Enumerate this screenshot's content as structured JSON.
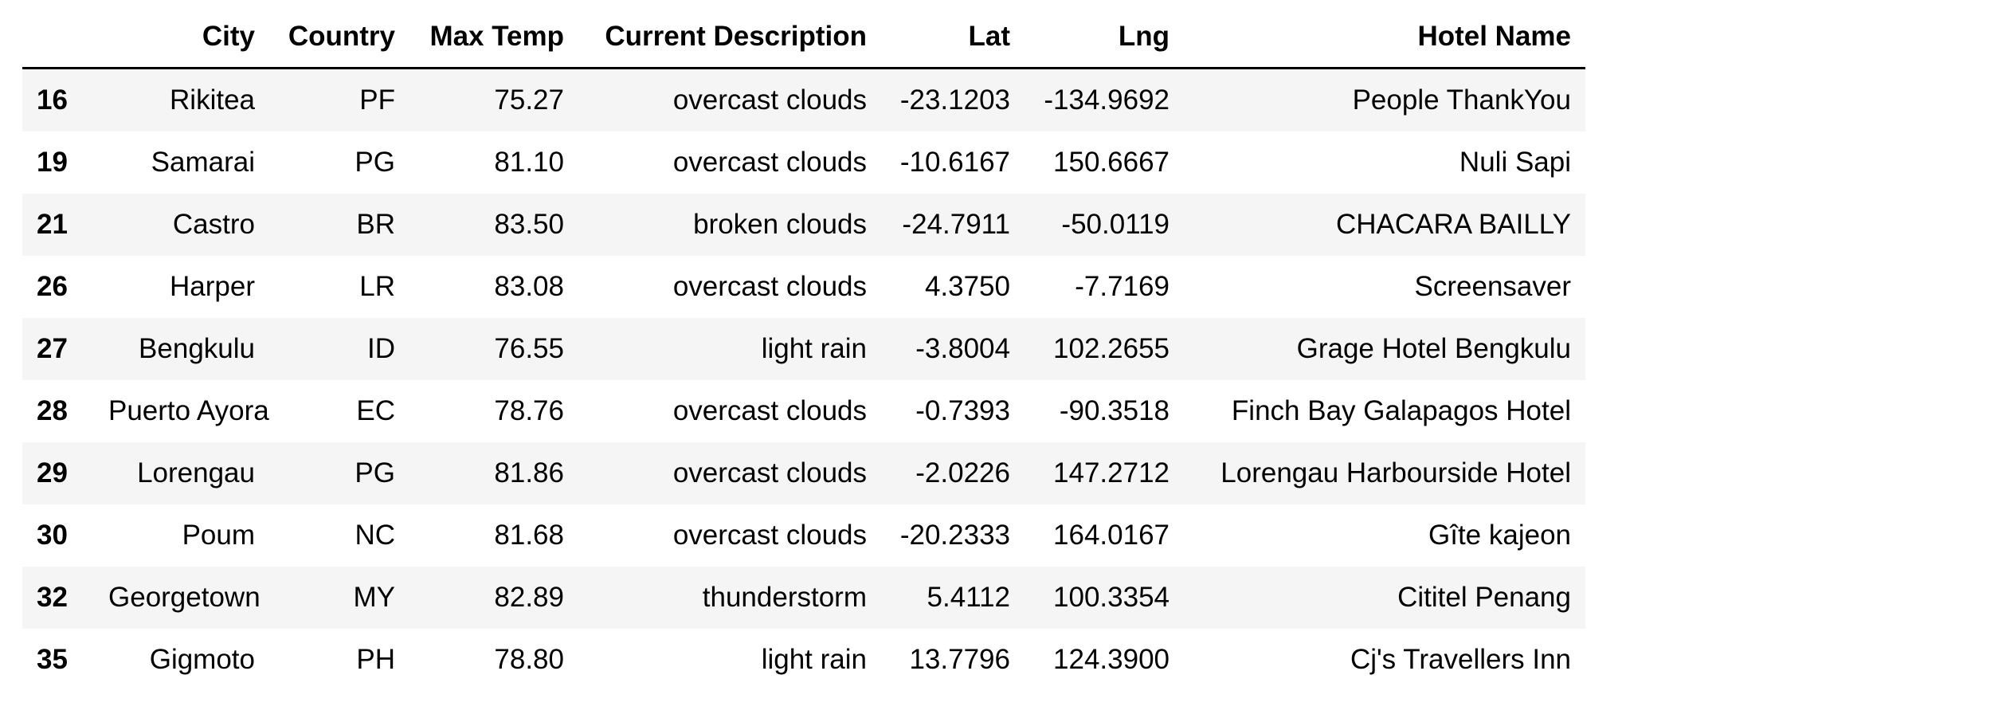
{
  "table": {
    "index_header": "",
    "columns": [
      "City",
      "Country",
      "Max Temp",
      "Current Description",
      "Lat",
      "Lng",
      "Hotel Name"
    ],
    "rows": [
      {
        "index": "16",
        "cells": [
          "Rikitea",
          "PF",
          "75.27",
          "overcast clouds",
          "-23.1203",
          "-134.9692",
          "People ThankYou"
        ]
      },
      {
        "index": "19",
        "cells": [
          "Samarai",
          "PG",
          "81.10",
          "overcast clouds",
          "-10.6167",
          "150.6667",
          "Nuli Sapi"
        ]
      },
      {
        "index": "21",
        "cells": [
          "Castro",
          "BR",
          "83.50",
          "broken clouds",
          "-24.7911",
          "-50.0119",
          "CHACARA BAILLY"
        ]
      },
      {
        "index": "26",
        "cells": [
          "Harper",
          "LR",
          "83.08",
          "overcast clouds",
          "4.3750",
          "-7.7169",
          "Screensaver"
        ]
      },
      {
        "index": "27",
        "cells": [
          "Bengkulu",
          "ID",
          "76.55",
          "light rain",
          "-3.8004",
          "102.2655",
          "Grage Hotel Bengkulu"
        ]
      },
      {
        "index": "28",
        "cells": [
          "Puerto Ayora",
          "EC",
          "78.76",
          "overcast clouds",
          "-0.7393",
          "-90.3518",
          "Finch Bay Galapagos Hotel"
        ]
      },
      {
        "index": "29",
        "cells": [
          "Lorengau",
          "PG",
          "81.86",
          "overcast clouds",
          "-2.0226",
          "147.2712",
          "Lorengau Harbourside Hotel"
        ]
      },
      {
        "index": "30",
        "cells": [
          "Poum",
          "NC",
          "81.68",
          "overcast clouds",
          "-20.2333",
          "164.0167",
          "Gîte kajeon"
        ]
      },
      {
        "index": "32",
        "cells": [
          "Georgetown",
          "MY",
          "82.89",
          "thunderstorm",
          "5.4112",
          "100.3354",
          "Cititel Penang"
        ]
      },
      {
        "index": "35",
        "cells": [
          "Gigmoto",
          "PH",
          "78.80",
          "light rain",
          "13.7796",
          "124.3900",
          "Cj's Travellers Inn"
        ]
      }
    ]
  }
}
